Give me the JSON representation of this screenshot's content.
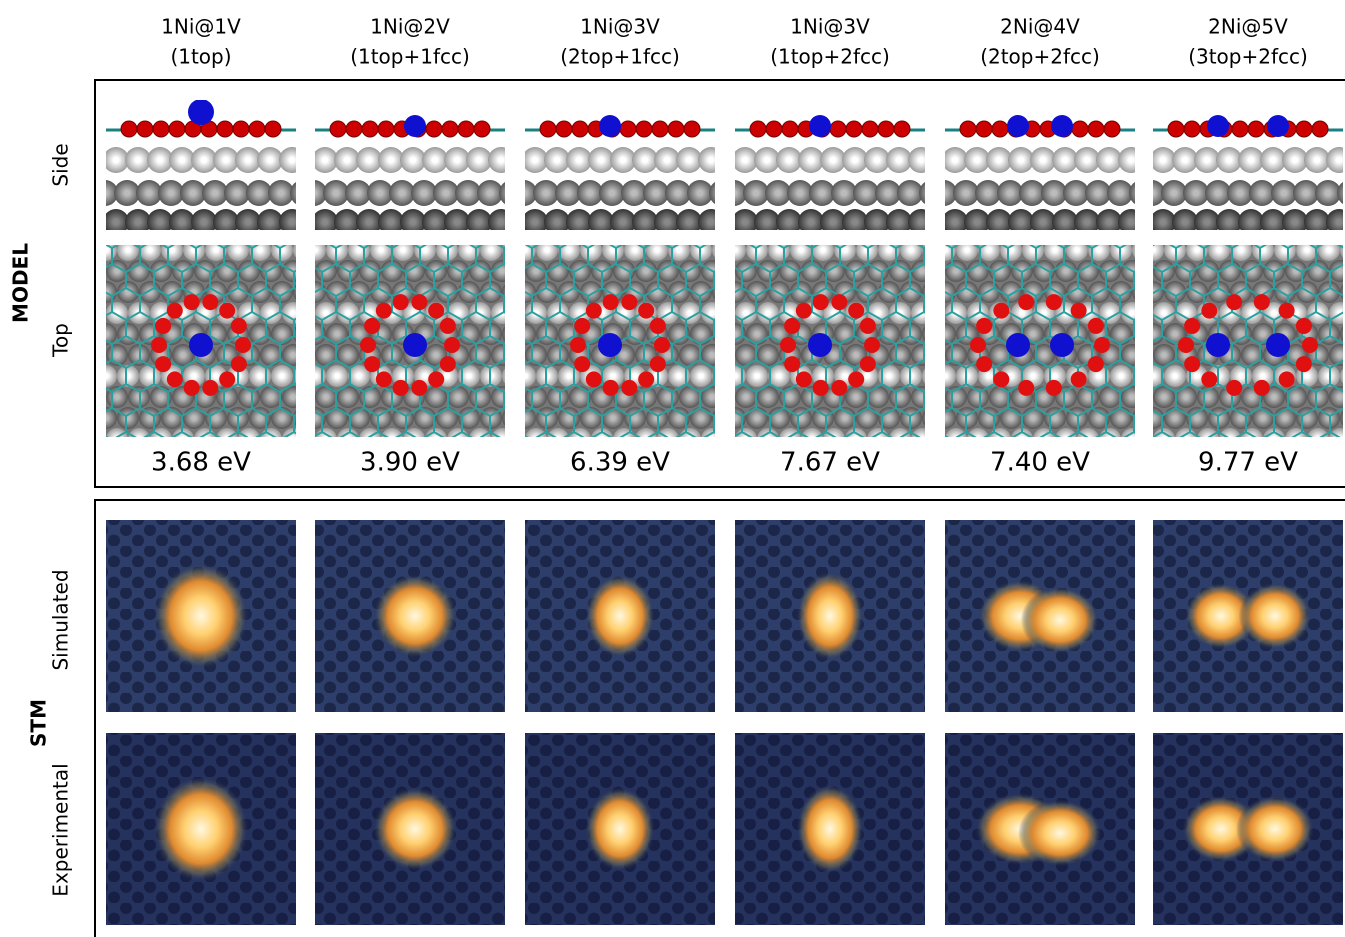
{
  "columns": [
    {
      "label": "1Ni@1V",
      "sites": "(1top)",
      "energy": "3.68 eV"
    },
    {
      "label": "1Ni@2V",
      "sites": "(1top+1fcc)",
      "energy": "3.90 eV"
    },
    {
      "label": "1Ni@3V",
      "sites": "(2top+1fcc)",
      "energy": "6.39 eV"
    },
    {
      "label": "1Ni@3V",
      "sites": "(1top+2fcc)",
      "energy": "7.67 eV"
    },
    {
      "label": "2Ni@4V",
      "sites": "(2top+2fcc)",
      "energy": "7.40 eV"
    },
    {
      "label": "2Ni@5V",
      "sites": "(3top+2fcc)",
      "energy": "9.77 eV"
    }
  ],
  "sections": {
    "model": {
      "title": "MODEL",
      "rows": [
        "Side",
        "Top"
      ]
    },
    "stm": {
      "title": "STM",
      "rows": [
        "Simulated",
        "Experimental"
      ]
    }
  }
}
